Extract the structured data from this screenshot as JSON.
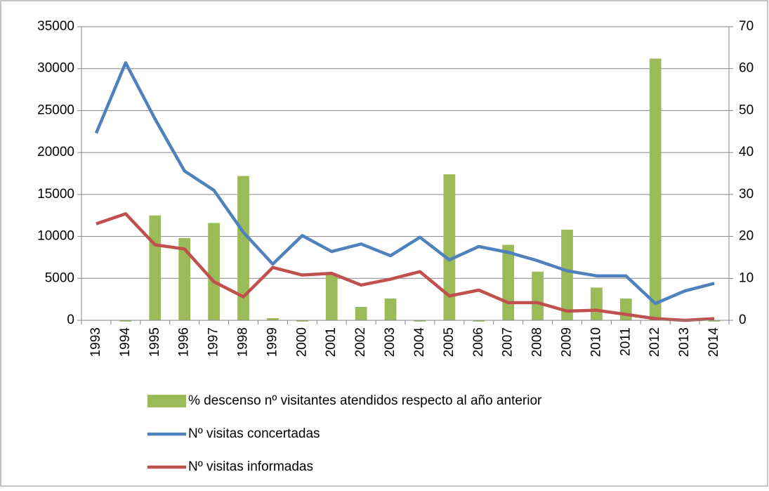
{
  "chart_data": {
    "type": "bar_line",
    "categories": [
      "1993",
      "1994",
      "1995",
      "1996",
      "1997",
      "1998",
      "1999",
      "2000",
      "2001",
      "2002",
      "2003",
      "2004",
      "2005",
      "2006",
      "2007",
      "2008",
      "2009",
      "2010",
      "2011",
      "2012",
      "2013",
      "2014"
    ],
    "series": [
      {
        "name": "% descenso nº visitantes atendidos respecto al año anterior",
        "type": "bar",
        "axis": "y2",
        "color": "#9bbb59",
        "values": [
          null,
          -0.3,
          25,
          19.6,
          23.2,
          34.4,
          0.5,
          -0.3,
          11,
          3.2,
          5.2,
          -0.3,
          34.8,
          -0.3,
          18,
          11.6,
          21.6,
          7.8,
          5.2,
          62.4,
          0,
          -0.3
        ]
      },
      {
        "name": "Nº visitas concertadas",
        "type": "line",
        "color": "#4f81bd",
        "values": [
          22300,
          30700,
          24000,
          17800,
          15500,
          10500,
          6700,
          10100,
          8200,
          9100,
          7700,
          9900,
          7200,
          8800,
          8100,
          7100,
          5900,
          5300,
          5300,
          2000,
          3500,
          4400
        ]
      },
      {
        "name": "Nº visitas informadas",
        "type": "line",
        "color": "#c0504d",
        "values": [
          11500,
          12700,
          9000,
          8500,
          4600,
          2800,
          6300,
          5400,
          5600,
          4200,
          4900,
          5800,
          2900,
          3600,
          2100,
          2100,
          1100,
          1200,
          700,
          200,
          0,
          200
        ]
      }
    ],
    "ylim": [
      0,
      35000
    ],
    "yticks": [
      0,
      5000,
      10000,
      15000,
      20000,
      25000,
      30000,
      35000
    ],
    "y2lim": [
      0,
      70
    ],
    "y2ticks": [
      0,
      10,
      20,
      30,
      40,
      50,
      60,
      70
    ],
    "grid": true
  }
}
